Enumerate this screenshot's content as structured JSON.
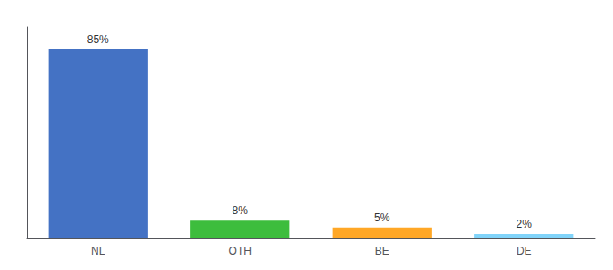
{
  "chart_data": {
    "type": "bar",
    "categories": [
      "NL",
      "OTH",
      "BE",
      "DE"
    ],
    "values": [
      85,
      8,
      5,
      2
    ],
    "value_labels": [
      "85%",
      "8%",
      "5%",
      "2%"
    ],
    "data_labels": true,
    "colors": [
      "#4472C4",
      "#3DBD3D",
      "#FFA726",
      "#81D4FA"
    ],
    "ylim": [
      0,
      95
    ],
    "tick_labels": "x",
    "grid": false
  }
}
